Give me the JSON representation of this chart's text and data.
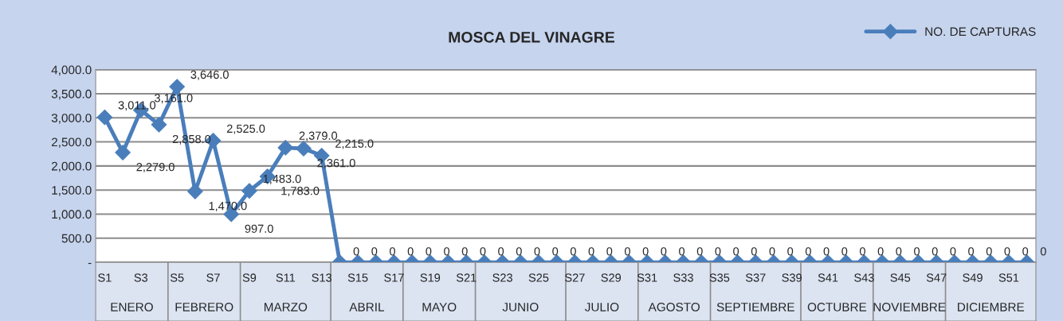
{
  "chart_data": {
    "type": "line",
    "title": "MOSCA DEL VINAGRE",
    "categories": [
      "S1",
      null,
      "S3",
      null,
      "S5",
      null,
      "S7",
      null,
      "S9",
      null,
      "S11",
      null,
      "S13",
      null,
      "S15",
      null,
      "S17",
      null,
      "S19",
      null,
      "S21",
      null,
      "S23",
      null,
      "S25",
      null,
      "S27",
      null,
      "S29",
      null,
      "S31",
      null,
      "S33",
      null,
      "S35",
      null,
      "S37",
      null,
      "S39",
      null,
      "S41",
      null,
      "S43",
      null,
      "S45",
      null,
      "S47",
      null,
      "S49",
      null,
      "S51",
      null
    ],
    "series": [
      {
        "name": "NO. DE CAPTURAS",
        "color": "#4a7ebb",
        "values": [
          3011,
          2279,
          3161,
          2858,
          3646,
          1470,
          2525,
          997,
          1483,
          1783,
          2379,
          2361,
          2215,
          0,
          0,
          0,
          0,
          0,
          0,
          0,
          0,
          0,
          0,
          0,
          0,
          0,
          0,
          0,
          0,
          0,
          0,
          0,
          0,
          0,
          0,
          0,
          0,
          0,
          0,
          0,
          0,
          0,
          0,
          0,
          0,
          0,
          0,
          0,
          0,
          0,
          0,
          0
        ],
        "value_labels": [
          "3,011.0",
          "2,279.0",
          "3,161.0",
          "2,858.0",
          "3,646.0",
          "1,470.0",
          "2,525.0",
          "997.0",
          "1,483.0",
          "1,783.0",
          "2,379.0",
          "2,361.0",
          "2,215.0",
          "0",
          "0",
          "0",
          "0",
          "0",
          "0",
          "0",
          "0",
          "0",
          "0",
          "0",
          "0",
          "0",
          "0",
          "0",
          "0",
          "0",
          "0",
          "0",
          "0",
          "0",
          "0",
          "0",
          "0",
          "0",
          "0",
          "0",
          "0",
          "0",
          "0",
          "0",
          "0",
          "0",
          "0",
          "0",
          "0",
          "0",
          "0",
          "0"
        ]
      }
    ],
    "ylim": [
      0,
      4000
    ],
    "yticks": [
      {
        "value": 0,
        "label": "-"
      },
      {
        "value": 500,
        "label": "500.0"
      },
      {
        "value": 1000,
        "label": "1,000.0"
      },
      {
        "value": 1500,
        "label": "1,500.0"
      },
      {
        "value": 2000,
        "label": "2,000.0"
      },
      {
        "value": 2500,
        "label": "2,500.0"
      },
      {
        "value": 3000,
        "label": "3,000.0"
      },
      {
        "value": 3500,
        "label": "3,500.0"
      },
      {
        "value": 4000,
        "label": "4,000.0"
      }
    ],
    "grid": "y",
    "legend": "top right",
    "marker": "diamond",
    "line_style": "solid",
    "annotations": [
      "ENERO",
      "FEBRERO",
      "MARZO",
      "ABRIL",
      "MAYO",
      "JUNIO",
      "JULIO",
      "AGOSTO",
      "SEPTIEMBRE",
      "OCTUBRE",
      "NOVIEMBRE",
      "DICIEMBRE"
    ]
  }
}
